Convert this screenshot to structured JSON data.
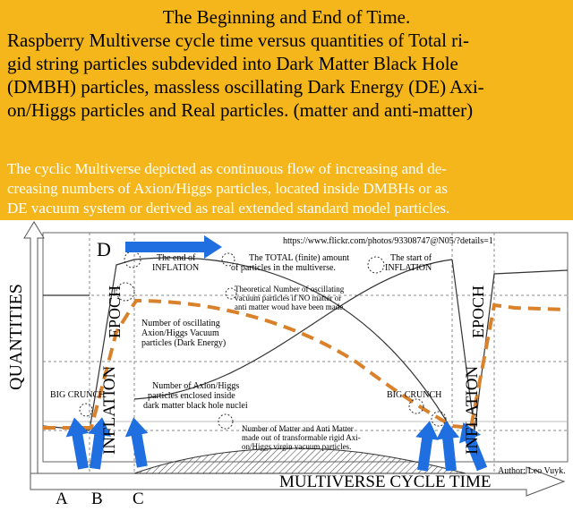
{
  "header": {
    "title": "The Beginning and End of Time.",
    "subtitle_lines": [
      "Raspberry Multiverse cycle time versus quantities of Total  ri-",
      "gid string particles subdevided into Dark Matter Black Hole",
      "(DMBH) particles, massless oscillating Dark Energy (DE) Axi-",
      "on/Higgs particles and Real particles. (matter and anti-matter)"
    ],
    "description_lines": [
      "The cyclic Multiverse depicted as continuous flow of increasing and de-",
      "creasing numbers of Axion/Higgs particles, located inside  DMBHs or as",
      "DE vacuum system or derived as real extended standard model particles."
    ]
  },
  "diagram": {
    "url": "https://www.flickr.com/photos/93308747@N05/?details=1",
    "y_axis_label": "QUANTITIES",
    "x_axis_label": "MULTIVERSE CYCLE TIME",
    "epoch_labels": [
      "INFLATION",
      "EPOCH"
    ],
    "point_labels": [
      "A",
      "B",
      "C",
      "D"
    ],
    "annotations": {
      "end_inflation": [
        "The end of",
        "INFLATION"
      ],
      "total": [
        "The TOTAL (finite) amount",
        "of particles in the multiverse."
      ],
      "start_inflation": [
        "The start of",
        "INFLATION"
      ],
      "theoretical": [
        "Theoretical Number of oscillating",
        "vacuum particles if NO matter or",
        "anti matter woud have been made."
      ],
      "oscillating": [
        "Number of oscillating",
        "Axion/Higgs Vacuum",
        "particles (Dark Energy)"
      ],
      "enclosed": [
        "Number of Axion/Higgs",
        "particles enclosed inside",
        "dark matter black hole nuclei"
      ],
      "matter": [
        "Number of Matter and Anti Matter",
        "made out of transformable rigid Axi-",
        "on/Higgs virgin vacuum particles."
      ],
      "big_crunch_left": "BIG CRUNCH",
      "big_crunch_right": "BIG CRUNCH",
      "author": "Author: Leo Vuyk."
    },
    "colors": {
      "banner": "#f4b61a",
      "dashed_curve": "#d9822b",
      "arrows": "#1f6fe0",
      "lines": "#333333"
    }
  }
}
